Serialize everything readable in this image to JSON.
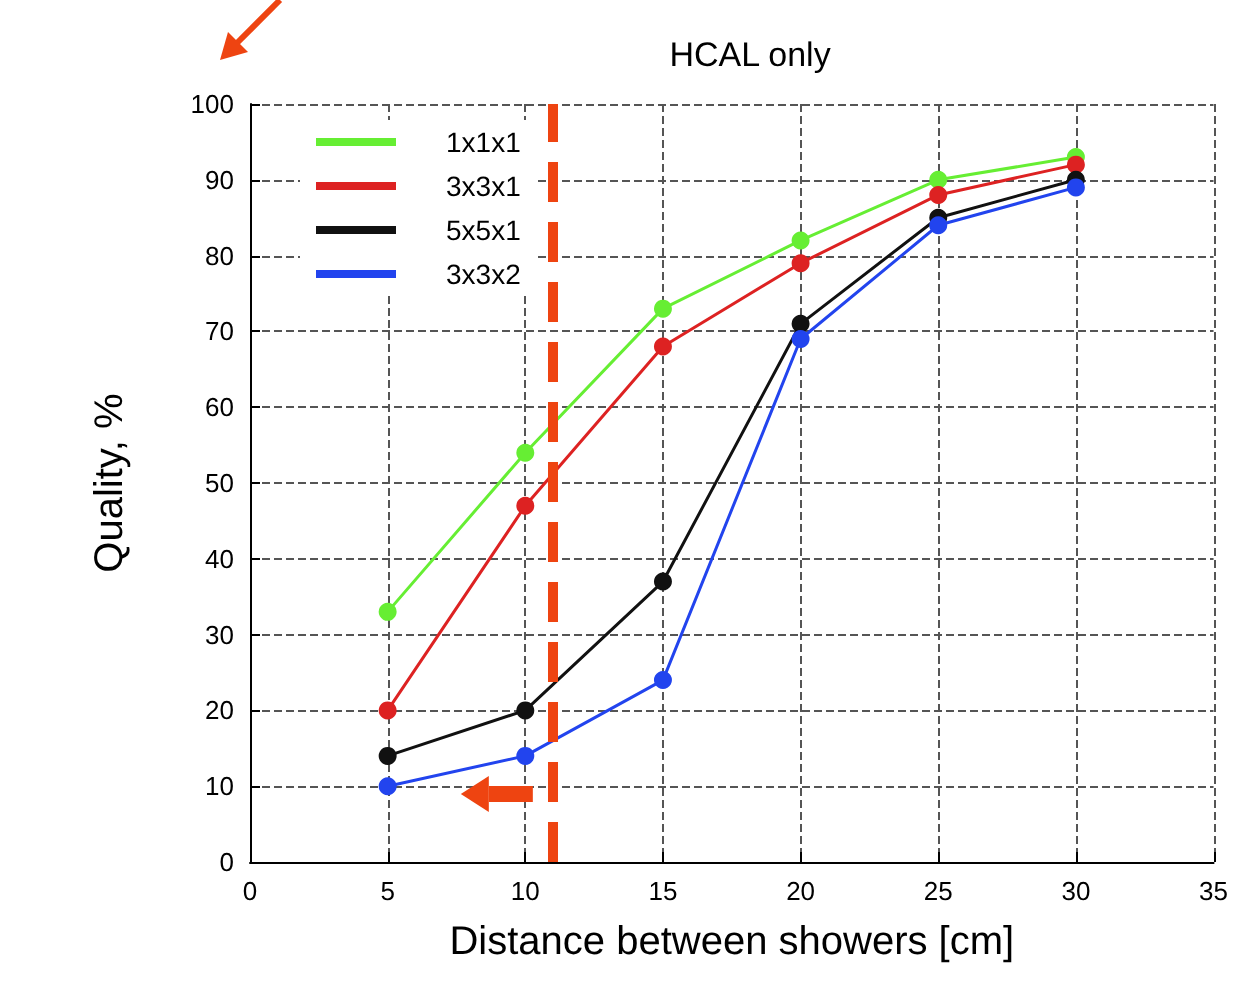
{
  "chart_data": {
    "type": "line",
    "title": "HCAL only",
    "xlabel": "Distance between showers [cm]",
    "ylabel": "Quality, %",
    "x": [
      5,
      10,
      15,
      20,
      25,
      30
    ],
    "series": [
      {
        "name": "1x1x1",
        "color": "#66ee33",
        "values": [
          33,
          54,
          73,
          82,
          90,
          93
        ]
      },
      {
        "name": "3x3x1",
        "color": "#dd2222",
        "values": [
          20,
          47,
          68,
          79,
          88,
          92
        ]
      },
      {
        "name": "5x5x1",
        "color": "#111111",
        "values": [
          14,
          20,
          37,
          71,
          85,
          90
        ]
      },
      {
        "name": "3x3x2",
        "color": "#2244ee",
        "values": [
          10,
          14,
          24,
          69,
          84,
          89
        ]
      }
    ],
    "xlim": [
      0,
      35
    ],
    "xticks": [
      0,
      5,
      10,
      15,
      20,
      25,
      30,
      35
    ],
    "ylim": [
      0,
      100
    ],
    "yticks": [
      0,
      10,
      20,
      30,
      40,
      50,
      60,
      70,
      80,
      90,
      100
    ],
    "ref_lines": [
      {
        "axis": "x",
        "value": 11,
        "color": "#ee4411",
        "line_style": "dashed"
      }
    ],
    "grid": true,
    "legend": "top left",
    "marker": "circle",
    "line_style": "solid"
  }
}
